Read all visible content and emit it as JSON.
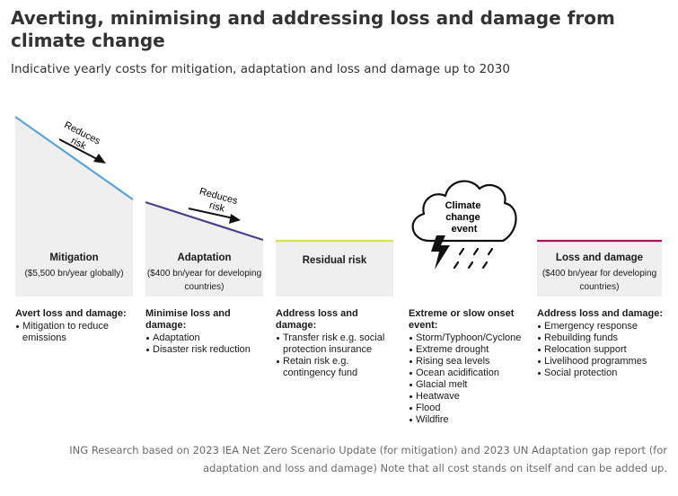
{
  "title": "Averting, minimising and addressing loss and damage from climate change",
  "subtitle": "Indicative yearly costs for mitigation, adaptation and loss and damage up to 2030",
  "arrow_label": "Reduces risk",
  "cloud_label": "Climate change event",
  "columns": [
    {
      "name": "Mitigation",
      "cost": "($5,500 bn/year globally)",
      "heading": "Avert loss and damage:",
      "items": [
        "Mitigation to reduce emissions"
      ],
      "line_color": "#5aa3d8"
    },
    {
      "name": "Adaptation",
      "cost": "($400 bn/year for developing countries)",
      "heading": "Minimise loss and damage:",
      "items": [
        "Adaptation",
        "Disaster risk reduction"
      ],
      "line_color": "#4b3f8f"
    },
    {
      "name": "Residual risk",
      "cost": "",
      "heading": "Address loss and damage:",
      "items": [
        "Transfer risk e.g. social protection insurance",
        "Retain risk e.g. contingency fund"
      ],
      "line_color": "#d4e157"
    },
    {
      "name": "",
      "cost": "",
      "heading": "Extreme or slow onset event:",
      "items": [
        "Storm/Typhoon/Cyclone",
        "Extreme drought",
        "Rising sea levels",
        "Ocean acidification",
        "Glacial melt",
        "Heatwave",
        "Flood",
        "Wildfire"
      ],
      "line_color": ""
    },
    {
      "name": "Loss and damage",
      "cost": "($400 bn/year for developing countries)",
      "heading": "Address loss and damage:",
      "items": [
        "Emergency response",
        "Rebuilding funds",
        "Relocation support",
        "Livelihood programmes",
        "Social protection"
      ],
      "line_color": "#a0195c"
    }
  ],
  "footnote": "ING Research based on 2023 IEA Net Zero Scenario Update (for mitigation) and 2023 UN Adaptation gap report (for adaptation and loss and damage) Note that all cost stands on itself and can be added up."
}
